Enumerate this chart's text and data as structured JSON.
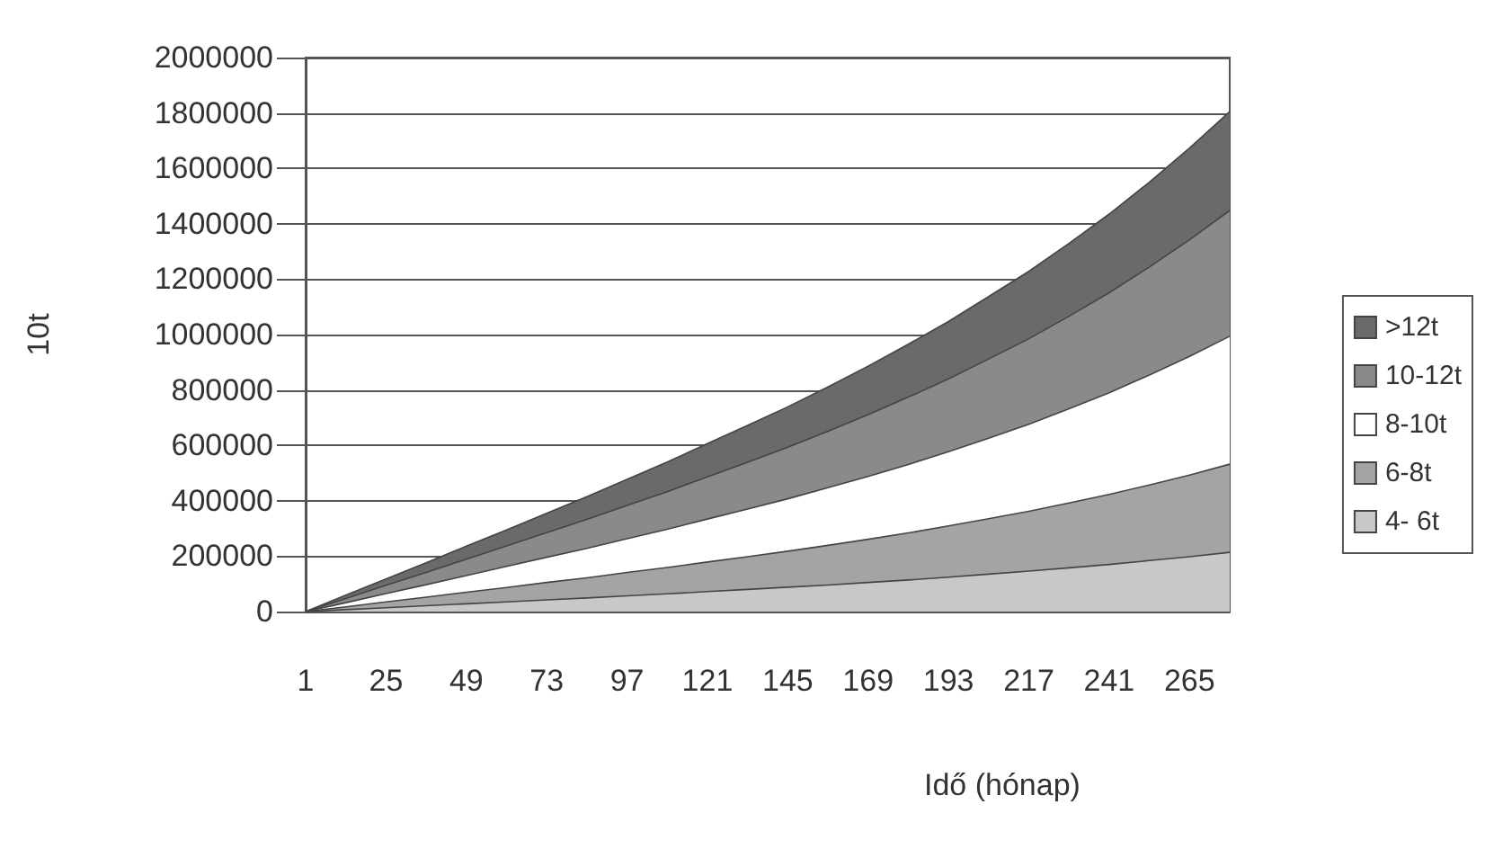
{
  "chart_data": {
    "type": "area",
    "stacked": true,
    "xlabel": "Idő (hónap)",
    "ylabel": "10t",
    "categories": [
      "1",
      null,
      "25",
      null,
      "49",
      null,
      "73",
      null,
      "97",
      null,
      "121",
      null,
      "145",
      null,
      "169",
      null,
      "193",
      null,
      "217",
      null,
      "241",
      null,
      "265",
      null
    ],
    "ylim": [
      0,
      2000000
    ],
    "yticks": [
      0,
      200000,
      400000,
      600000,
      800000,
      1000000,
      1200000,
      1400000,
      1600000,
      1800000,
      2000000
    ],
    "grid": "y",
    "legend": "right",
    "series": [
      {
        "name": "4- 6t",
        "color": "#c8c8c8",
        "values": [
          0,
          7000,
          14000,
          21000,
          28000,
          35000,
          42000,
          49000,
          57000,
          64000,
          72000,
          80000,
          88000,
          96000,
          105000,
          114000,
          124000,
          135000,
          146000,
          158000,
          170000,
          184000,
          198000,
          214000
        ]
      },
      {
        "name": "6-8t",
        "color": "#a4a4a4",
        "values": [
          0,
          10000,
          21000,
          31000,
          42000,
          52000,
          63000,
          73000,
          84000,
          95000,
          107000,
          118000,
          130000,
          143000,
          156000,
          170000,
          185000,
          200000,
          216000,
          234000,
          253000,
          273000,
          295000,
          318000
        ]
      },
      {
        "name": "8-10t",
        "color": "#ffffff",
        "values": [
          0,
          15000,
          30000,
          45000,
          60000,
          76000,
          91000,
          106000,
          122000,
          138000,
          155000,
          172000,
          189000,
          208000,
          227000,
          247000,
          268000,
          291000,
          314000,
          340000,
          367000,
          397000,
          428000,
          462000
        ]
      },
      {
        "name": "10-12t",
        "color": "#8a8a8a",
        "values": [
          0,
          15000,
          30000,
          44000,
          59000,
          74000,
          89000,
          105000,
          120000,
          136000,
          152000,
          169000,
          186000,
          204000,
          223000,
          243000,
          263000,
          286000,
          309000,
          334000,
          361000,
          390000,
          421000,
          454000
        ]
      },
      {
        "name": ">12t",
        "color": "#6a6a6a",
        "values": [
          0,
          12000,
          23000,
          35000,
          47000,
          58000,
          70000,
          82000,
          94000,
          107000,
          120000,
          133000,
          146000,
          160000,
          175000,
          191000,
          207000,
          225000,
          243000,
          263000,
          284000,
          306000,
          331000,
          357000
        ]
      }
    ]
  }
}
